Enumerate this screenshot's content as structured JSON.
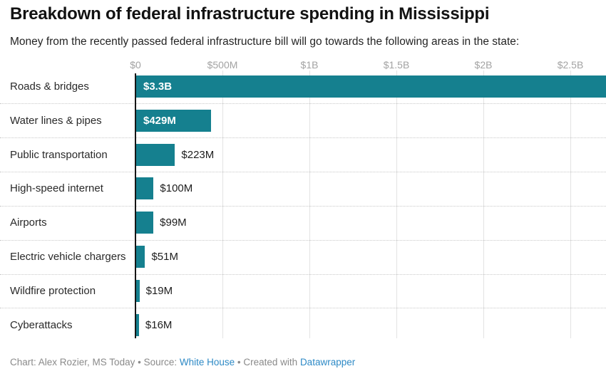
{
  "header": {
    "title": "Breakdown of federal infrastructure spending in Mississippi",
    "subtitle": "Money from the recently passed federal infrastructure bill will go towards the following areas in the state:"
  },
  "chart_data": {
    "type": "bar",
    "orientation": "horizontal",
    "unit": "USD",
    "categories": [
      "Roads & bridges",
      "Water lines & pipes",
      "Public transportation",
      "High-speed internet",
      "Airports",
      "Electric vehicle chargers",
      "Wildfire protection",
      "Cyberattacks"
    ],
    "values_millions": [
      3300,
      429,
      223,
      100,
      99,
      51,
      19,
      16
    ],
    "value_labels": [
      "$3.3B",
      "$429M",
      "$223M",
      "$100M",
      "$99M",
      "$51M",
      "$19M",
      "$16M"
    ],
    "x_axis": {
      "ticks": [
        {
          "value_m": 0,
          "label": "$0"
        },
        {
          "value_m": 500,
          "label": "$500M"
        },
        {
          "value_m": 1000,
          "label": "$1B"
        },
        {
          "value_m": 1500,
          "label": "$1.5B"
        },
        {
          "value_m": 2000,
          "label": "$2B"
        },
        {
          "value_m": 2500,
          "label": "$2.5B"
        }
      ],
      "visible_max_m": 2700
    },
    "grid": true,
    "legend": null,
    "colors": {
      "bar": "#15808f",
      "bar_label_inside": "#ffffff",
      "bar_label_outside": "#1d1d1d",
      "axis_line": "#161616",
      "gridline": "#e3e3e3",
      "tick_label": "#a3a3a3",
      "row_separator": "#c9c9c9"
    }
  },
  "footer": {
    "credit": "Chart: Alex Rozier, MS Today",
    "separator": " • ",
    "source_label": "Source: ",
    "source_link": "White House",
    "created_label": "Created with ",
    "created_link": "Datawrapper",
    "link_color": "#2e8ac6"
  }
}
